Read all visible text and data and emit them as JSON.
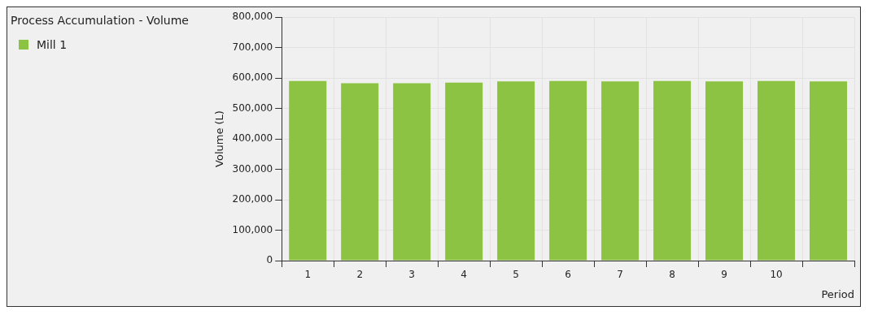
{
  "chart_data": {
    "type": "bar",
    "title": "Process Accumulation - Volume",
    "xlabel": "Period",
    "ylabel": "Volume (L)",
    "categories": [
      "1",
      "2",
      "3",
      "4",
      "5",
      "6",
      "7",
      "8",
      "9",
      "10",
      null
    ],
    "series": [
      {
        "name": "Mill 1",
        "color": "#8dc343",
        "values": [
          590000,
          583000,
          583000,
          585000,
          589000,
          590000,
          589000,
          590000,
          589000,
          590000,
          589000
        ]
      }
    ],
    "ylim": [
      0,
      800000
    ],
    "yticks": [
      0,
      {
        "value": 100000,
        "label": "100,000"
      },
      {
        "value": 200000,
        "label": "200,000"
      },
      {
        "value": 300000,
        "label": "300,000"
      },
      {
        "value": 400000,
        "label": "400,000"
      },
      {
        "value": 500000,
        "label": "500,000"
      },
      {
        "value": 600000,
        "label": "600,000"
      },
      {
        "value": 700000,
        "label": "700,000"
      },
      {
        "value": 800000,
        "label": "800,000"
      }
    ],
    "grid": true,
    "legend": "top left"
  }
}
